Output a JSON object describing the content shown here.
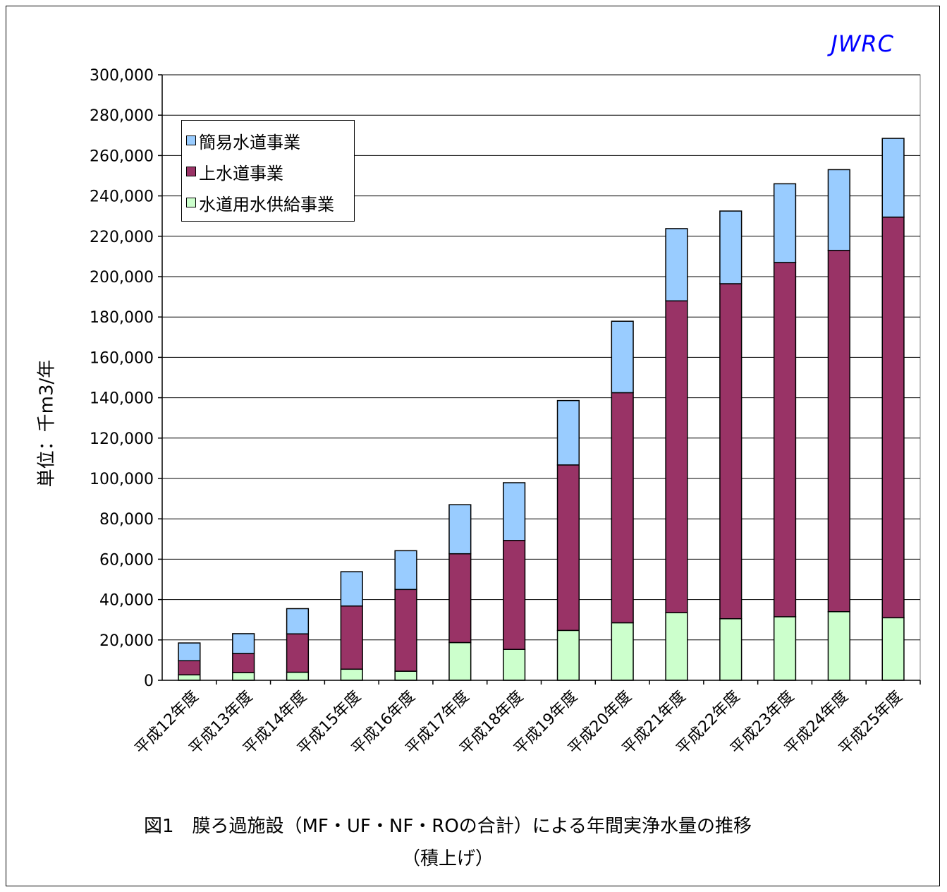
{
  "brand": "JWRC",
  "caption": {
    "line1": "図1　膜ろ過施設（MF・UF・NF・ROの合計）による年間実浄水量の推移",
    "line2": "（積上げ）"
  },
  "chart_data": {
    "type": "bar",
    "stacked": true,
    "ylabel": "単位：千m3/年",
    "ylim": [
      0,
      300000
    ],
    "yticks": [
      "0",
      "20,000",
      "40,000",
      "60,000",
      "80,000",
      "100,000",
      "120,000",
      "140,000",
      "160,000",
      "180,000",
      "200,000",
      "220,000",
      "240,000",
      "260,000",
      "280,000",
      "300,000"
    ],
    "ytick_values": [
      0,
      20000,
      40000,
      60000,
      80000,
      100000,
      120000,
      140000,
      160000,
      180000,
      200000,
      220000,
      240000,
      260000,
      280000,
      300000
    ],
    "grid": true,
    "legend_position": "top-left",
    "categories": [
      "平成12年度",
      "平成13年度",
      "平成14年度",
      "平成15年度",
      "平成16年度",
      "平成17年度",
      "平成18年度",
      "平成19年度",
      "平成20年度",
      "平成21年度",
      "平成22年度",
      "平成23年度",
      "平成24年度",
      "平成25年度"
    ],
    "series": [
      {
        "name": "水道用水供給事業",
        "color": "#ccffcc",
        "values": [
          2700,
          3800,
          4000,
          5500,
          4500,
          18700,
          15300,
          24700,
          28500,
          33500,
          30500,
          31500,
          34000,
          31000
        ]
      },
      {
        "name": "上水道事業",
        "color": "#993366",
        "values": [
          7000,
          9500,
          19000,
          31300,
          40500,
          44000,
          54000,
          82000,
          114000,
          154500,
          166000,
          175500,
          179000,
          198500
        ]
      },
      {
        "name": "簡易水道事業",
        "color": "#99ccff",
        "values": [
          8800,
          9800,
          12500,
          17000,
          19200,
          24300,
          28600,
          31900,
          35400,
          35800,
          36000,
          39000,
          40000,
          39000
        ]
      }
    ]
  }
}
